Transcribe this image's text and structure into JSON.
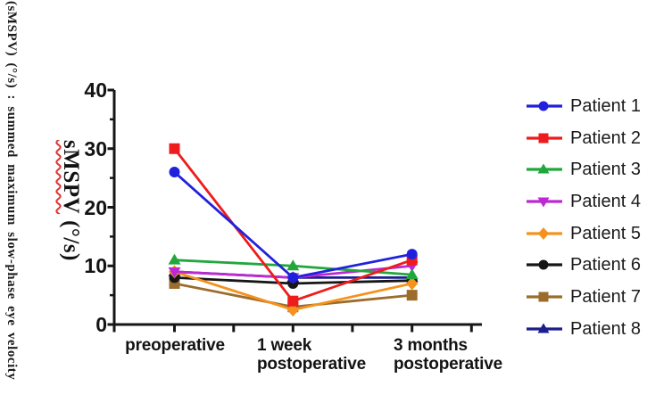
{
  "figure": {
    "side_caption": "(sMSPV) (°/s) : summed maximum slow-phase eye velocity",
    "y_axis_label": {
      "main": "sMSPV",
      "units": "(°/s)"
    }
  },
  "colors": {
    "axis": "#161616",
    "background": "#ffffff",
    "ylabel_underline": "#e03535"
  },
  "chart_data": {
    "type": "line",
    "title": "",
    "xlabel": "",
    "ylabel": "sMSPV (°/s)",
    "ylim": [
      0,
      40
    ],
    "yticks": [
      0,
      10,
      20,
      30,
      40
    ],
    "minor_ytick_step": 5,
    "grid": false,
    "legend_position": "right",
    "categories": [
      "preoperative",
      "1 week postoperative",
      "3 months postoperative"
    ],
    "category_lines": [
      [
        "preoperative"
      ],
      [
        "1 week",
        "postoperative"
      ],
      [
        "3 months",
        "postoperative"
      ]
    ],
    "series": [
      {
        "name": "Patient 1",
        "color": "#2121dd",
        "marker": "circle",
        "values": [
          26,
          8,
          12
        ]
      },
      {
        "name": "Patient 2",
        "color": "#ee1c1c",
        "marker": "square",
        "values": [
          30,
          4,
          11
        ]
      },
      {
        "name": "Patient 3",
        "color": "#21a73c",
        "marker": "triangle-up",
        "values": [
          11,
          10,
          8.5
        ]
      },
      {
        "name": "Patient 4",
        "color": "#bc29d2",
        "marker": "triangle-down",
        "values": [
          9,
          8,
          10
        ]
      },
      {
        "name": "Patient 5",
        "color": "#f5921e",
        "marker": "diamond",
        "values": [
          9,
          2.5,
          7
        ]
      },
      {
        "name": "Patient 6",
        "color": "#161616",
        "marker": "circle",
        "values": [
          8,
          7,
          7.5
        ]
      },
      {
        "name": "Patient 7",
        "color": "#9b6c2c",
        "marker": "square",
        "values": [
          7,
          3,
          5
        ]
      },
      {
        "name": "Patient 8",
        "color": "#1d1d8f",
        "marker": "triangle-up",
        "values": [
          9,
          8,
          8
        ]
      }
    ]
  }
}
